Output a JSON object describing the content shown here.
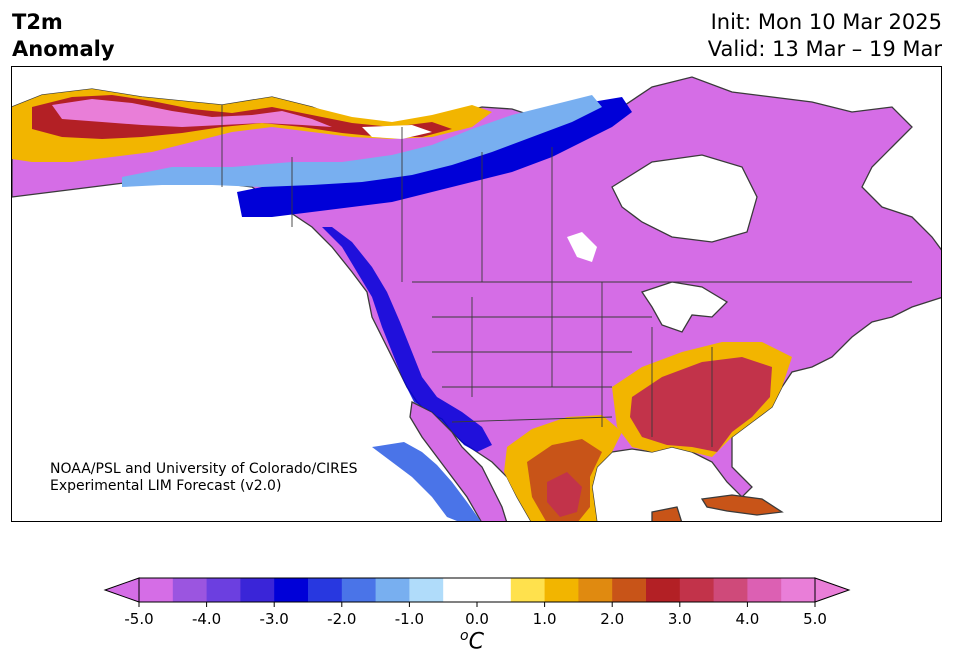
{
  "header": {
    "title_line1": "T2m",
    "title_line2": "Anomaly",
    "init": "Init: Mon 10 Mar 2025",
    "valid": "Valid: 13 Mar – 19 Mar"
  },
  "credit": {
    "line1": "NOAA/PSL and University of Colorado/CIRES",
    "line2": "Experimental LIM Forecast (v2.0)"
  },
  "colorbar": {
    "unit_base": "C",
    "unit_prefix": "o",
    "tick_labels": [
      "-5.0",
      "-4.0",
      "-3.0",
      "-2.0",
      "-1.0",
      "0.0",
      "1.0",
      "2.0",
      "3.0",
      "4.0",
      "5.0"
    ],
    "colors": [
      "#d56de6",
      "#9b55e0",
      "#6c3fe0",
      "#3a25d8",
      "#0000d8",
      "#2838e0",
      "#4a74e8",
      "#78aff0",
      "#b0dcfa",
      "#ffffff",
      "#ffffff",
      "#ffe14d",
      "#f2b500",
      "#e08a10",
      "#c85418",
      "#b32025",
      "#c2334a",
      "#cf4a7a",
      "#dc60b3",
      "#e97ed8"
    ],
    "under_color": "#d56de6",
    "over_color": "#e97ed8"
  }
}
